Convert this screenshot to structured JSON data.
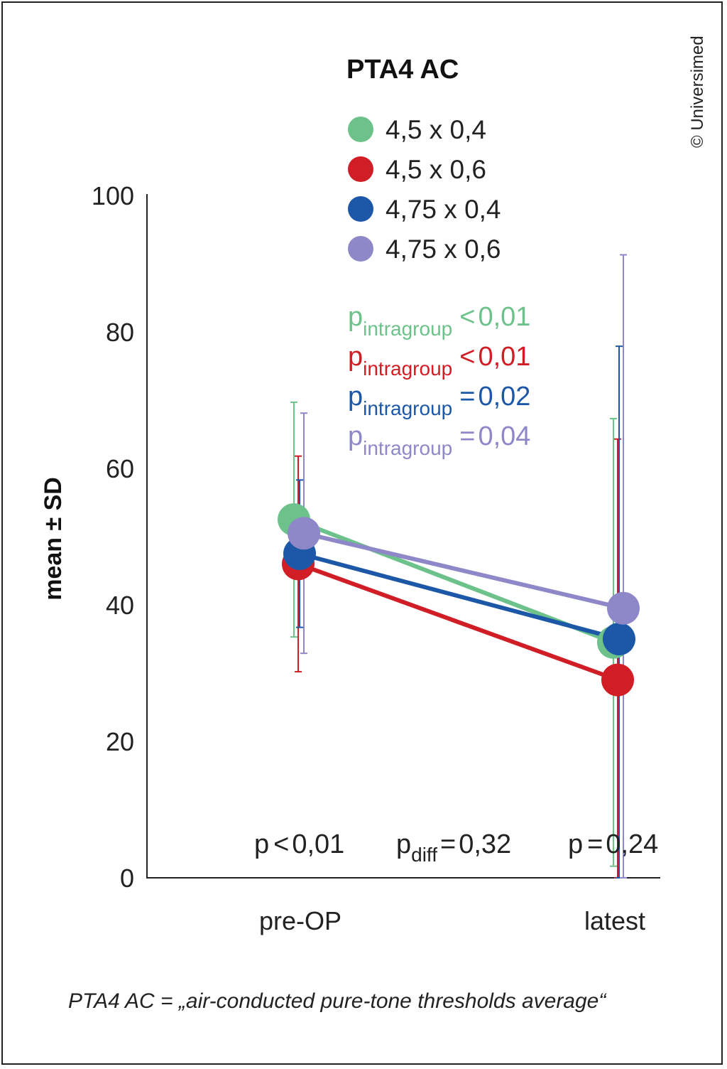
{
  "colors": {
    "green": "#6cc28a",
    "red": "#d11e26",
    "blue": "#1d57a8",
    "lavender": "#8f88c8",
    "axis": "#222222"
  },
  "chart_data": {
    "type": "line",
    "title": "PTA4 AC",
    "ylabel": "mean ± SD",
    "xlabel": "",
    "categories": [
      "pre-OP",
      "latest"
    ],
    "ylim": [
      0,
      100
    ],
    "yticks": [
      "0",
      "20",
      "40",
      "60",
      "80",
      "100"
    ],
    "series": [
      {
        "name": "4,5 x 0,4",
        "color": "#6cc28a",
        "values": [
          52.5,
          34.5
        ],
        "sd": [
          17.2,
          32.8
        ],
        "p_label": "intragroup",
        "p_op": "<",
        "p_value": "0,01"
      },
      {
        "name": "4,5 x 0,6",
        "color": "#d11e26",
        "values": [
          46,
          29
        ],
        "sd": [
          15.8,
          35.3
        ],
        "p_label": "intragroup",
        "p_op": "<",
        "p_value": "0,01"
      },
      {
        "name": "4,75 x 0,4",
        "color": "#1d57a8",
        "values": [
          47.5,
          35
        ],
        "sd": [
          10.8,
          42.9
        ],
        "p_label": "intragroup",
        "p_op": "=",
        "p_value": "0,02"
      },
      {
        "name": "4,75 x 0,6",
        "color": "#8f88c8",
        "values": [
          50.5,
          39.5
        ],
        "sd": [
          17.6,
          51.8
        ],
        "p_label": "intragroup",
        "p_op": "=",
        "p_value": "0,04"
      }
    ],
    "annotations": {
      "p_pre": {
        "prefix": "p",
        "op": "<",
        "value": "0,01"
      },
      "p_diff": {
        "prefix": "p",
        "sub": "diff",
        "op": "=",
        "value": "0,32"
      },
      "p_latest": {
        "prefix": "p",
        "op": "=",
        "value": "0,24"
      }
    }
  },
  "copyright": "© Universimed",
  "footnote": "PTA4 AC = „air-conducted pure-tone thresholds average“"
}
